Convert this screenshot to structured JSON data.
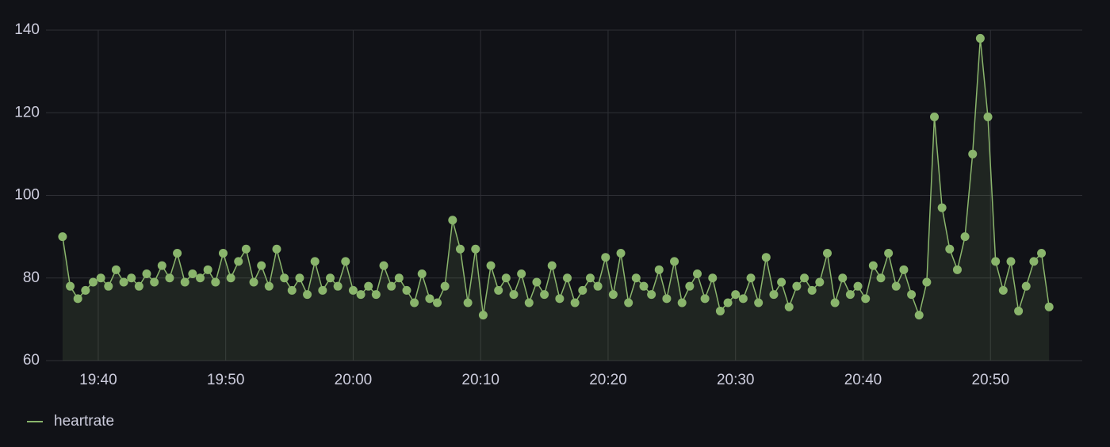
{
  "chart_data": {
    "type": "line",
    "x": [
      1177.2,
      1177.8,
      1178.4,
      1179,
      1179.6,
      1180.2,
      1180.8,
      1181.4,
      1182,
      1182.6,
      1183.2,
      1183.8,
      1184.4,
      1185,
      1185.6,
      1186.2,
      1186.8,
      1187.4,
      1188,
      1188.6,
      1189.2,
      1189.8,
      1190.4,
      1191,
      1191.6,
      1192.2,
      1192.8,
      1193.4,
      1194,
      1194.6,
      1195.2,
      1195.8,
      1196.4,
      1197,
      1197.6,
      1198.2,
      1198.8,
      1199.4,
      1200,
      1200.6,
      1201.2,
      1201.8,
      1202.4,
      1203,
      1203.6,
      1204.2,
      1204.8,
      1205.4,
      1206,
      1206.6,
      1207.2,
      1207.8,
      1208.4,
      1209,
      1209.6,
      1210.2,
      1210.8,
      1211.4,
      1212,
      1212.6,
      1213.2,
      1213.8,
      1214.4,
      1215,
      1215.6,
      1216.2,
      1216.8,
      1217.4,
      1218,
      1218.6,
      1219.2,
      1219.8,
      1220.4,
      1221,
      1221.6,
      1222.2,
      1222.8,
      1223.4,
      1224,
      1224.6,
      1225.2,
      1225.8,
      1226.4,
      1227,
      1227.6,
      1228.2,
      1228.8,
      1229.4,
      1230,
      1230.6,
      1231.2,
      1231.8,
      1232.4,
      1233,
      1233.6,
      1234.2,
      1234.8,
      1235.4,
      1236,
      1236.6,
      1237.2,
      1237.8,
      1238.4,
      1239,
      1239.6,
      1240.2,
      1240.8,
      1241.4,
      1242,
      1242.6,
      1243.2,
      1243.8,
      1244.4,
      1245,
      1245.6,
      1246.2,
      1246.8,
      1247.4,
      1248,
      1248.6,
      1249.2,
      1249.8,
      1250.4,
      1251,
      1251.6,
      1252.2,
      1252.8,
      1253.4,
      1254,
      1254.6
    ],
    "series": [
      {
        "name": "heartrate",
        "color": "#8ab56c",
        "values": [
          90,
          78,
          75,
          77,
          79,
          80,
          78,
          82,
          79,
          80,
          78,
          81,
          79,
          83,
          80,
          86,
          79,
          81,
          80,
          82,
          79,
          86,
          80,
          84,
          87,
          79,
          83,
          78,
          87,
          80,
          77,
          80,
          76,
          84,
          77,
          80,
          78,
          84,
          77,
          76,
          78,
          76,
          83,
          78,
          80,
          77,
          74,
          81,
          75,
          74,
          78,
          94,
          87,
          74,
          87,
          71,
          83,
          77,
          80,
          76,
          81,
          74,
          79,
          76,
          83,
          75,
          80,
          74,
          77,
          80,
          78,
          85,
          76,
          86,
          74,
          80,
          78,
          76,
          82,
          75,
          84,
          74,
          78,
          81,
          75,
          80,
          72,
          74,
          76,
          75,
          80,
          74,
          85,
          76,
          79,
          73,
          78,
          80,
          77,
          79,
          86,
          74,
          80,
          76,
          78,
          75,
          83,
          80,
          86,
          78,
          82,
          76,
          71,
          79,
          119,
          97,
          87,
          82,
          90,
          110,
          138,
          119,
          84,
          77,
          84,
          72,
          78,
          84,
          86,
          73
        ]
      }
    ],
    "xlim": [
      1175.9,
      1257.2
    ],
    "xticks": [
      {
        "value": 1180,
        "label": "19:40"
      },
      {
        "value": 1190,
        "label": "19:50"
      },
      {
        "value": 1200,
        "label": "20:00"
      },
      {
        "value": 1210,
        "label": "20:10"
      },
      {
        "value": 1220,
        "label": "20:20"
      },
      {
        "value": 1230,
        "label": "20:30"
      },
      {
        "value": 1240,
        "label": "20:40"
      },
      {
        "value": 1250,
        "label": "20:50"
      }
    ],
    "ylim": [
      60,
      140
    ],
    "yticks": [
      60,
      80,
      100,
      120,
      140
    ],
    "grid": true,
    "legend": "bottom-left"
  }
}
